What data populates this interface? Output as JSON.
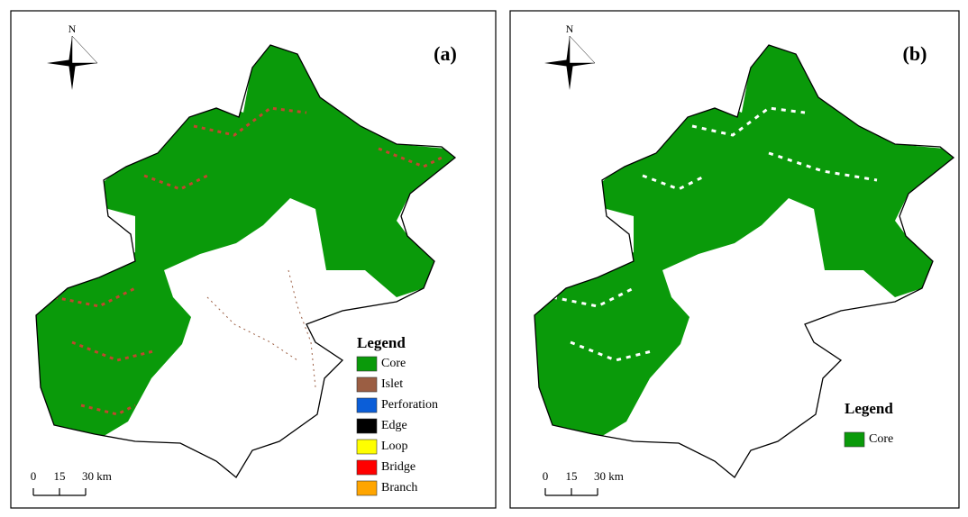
{
  "panels": [
    {
      "label": "(a)",
      "north": "N",
      "legend": {
        "title": "Legend",
        "items": [
          {
            "name": "Core",
            "color": "#0a9a0a"
          },
          {
            "name": "Islet",
            "color": "#9b5e43"
          },
          {
            "name": "Perforation",
            "color": "#0b5ed8"
          },
          {
            "name": "Edge",
            "color": "#000000"
          },
          {
            "name": "Loop",
            "color": "#ffff00"
          },
          {
            "name": "Bridge",
            "color": "#ff0000"
          },
          {
            "name": "Branch",
            "color": "#ffa500"
          }
        ]
      },
      "scale": [
        "0",
        "15",
        "30 km"
      ]
    },
    {
      "label": "(b)",
      "north": "N",
      "legend": {
        "title": "Legend",
        "items": [
          {
            "name": "Core",
            "color": "#0a9a0a"
          }
        ]
      },
      "scale": [
        "0",
        "15",
        "30 km"
      ]
    }
  ]
}
